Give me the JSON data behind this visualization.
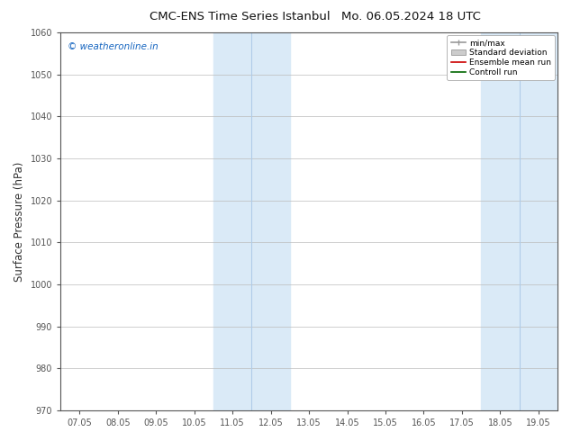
{
  "title": "CMC-ENS Time Series Istanbul",
  "title2": "Mo. 06.05.2024 18 UTC",
  "ylabel": "Surface Pressure (hPa)",
  "ylim": [
    970,
    1060
  ],
  "yticks": [
    970,
    980,
    990,
    1000,
    1010,
    1020,
    1030,
    1040,
    1050,
    1060
  ],
  "xtick_labels": [
    "07.05",
    "08.05",
    "09.05",
    "10.05",
    "11.05",
    "12.05",
    "13.05",
    "14.05",
    "15.05",
    "16.05",
    "17.05",
    "18.05",
    "19.05"
  ],
  "watermark": "© weatheronline.in",
  "watermark_color": "#1565c0",
  "background_color": "#ffffff",
  "shade_color": "#daeaf7",
  "shade_divider_color": "#b0cce8",
  "legend_labels": [
    "min/max",
    "Standard deviation",
    "Ensemble mean run",
    "Controll run"
  ],
  "grid_color": "#bbbbbb",
  "tick_color": "#555555",
  "spine_color": "#555555",
  "fig_width": 6.34,
  "fig_height": 4.9,
  "dpi": 100
}
